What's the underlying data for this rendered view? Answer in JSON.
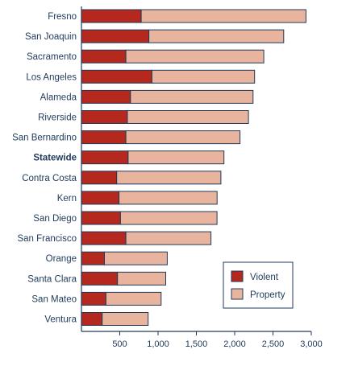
{
  "chart_data": {
    "type": "bar",
    "orientation": "horizontal",
    "stacked": true,
    "categories": [
      "Fresno",
      "San Joaquin",
      "Sacramento",
      "Los Angeles",
      "Alameda",
      "Riverside",
      "San Bernardino",
      "Statewide",
      "Contra Costa",
      "Kern",
      "San Diego",
      "San Francisco",
      "Orange",
      "Santa Clara",
      "San Mateo",
      "Ventura"
    ],
    "highlight_category": "Statewide",
    "series": [
      {
        "name": "Violent",
        "color": "#b5281e",
        "values": [
          780,
          880,
          580,
          920,
          640,
          600,
          580,
          610,
          460,
          490,
          510,
          580,
          300,
          470,
          320,
          270
        ]
      },
      {
        "name": "Property",
        "color": "#e9b49e",
        "values": [
          2150,
          1760,
          1800,
          1340,
          1600,
          1580,
          1490,
          1250,
          1360,
          1280,
          1260,
          1110,
          820,
          630,
          720,
          600
        ]
      }
    ],
    "xlim": [
      0,
      3000
    ],
    "xticks": [
      500,
      1000,
      1500,
      2000,
      2500,
      3000
    ],
    "xtick_labels": [
      "500",
      "1,000",
      "1,500",
      "2,000",
      "2,500",
      "3,000"
    ],
    "grid": false,
    "legend_position": "lower-right",
    "colors": {
      "axis": "#1f3a5c",
      "bar_outline": "#1f3a5c",
      "text": "#1f3a5c"
    }
  }
}
